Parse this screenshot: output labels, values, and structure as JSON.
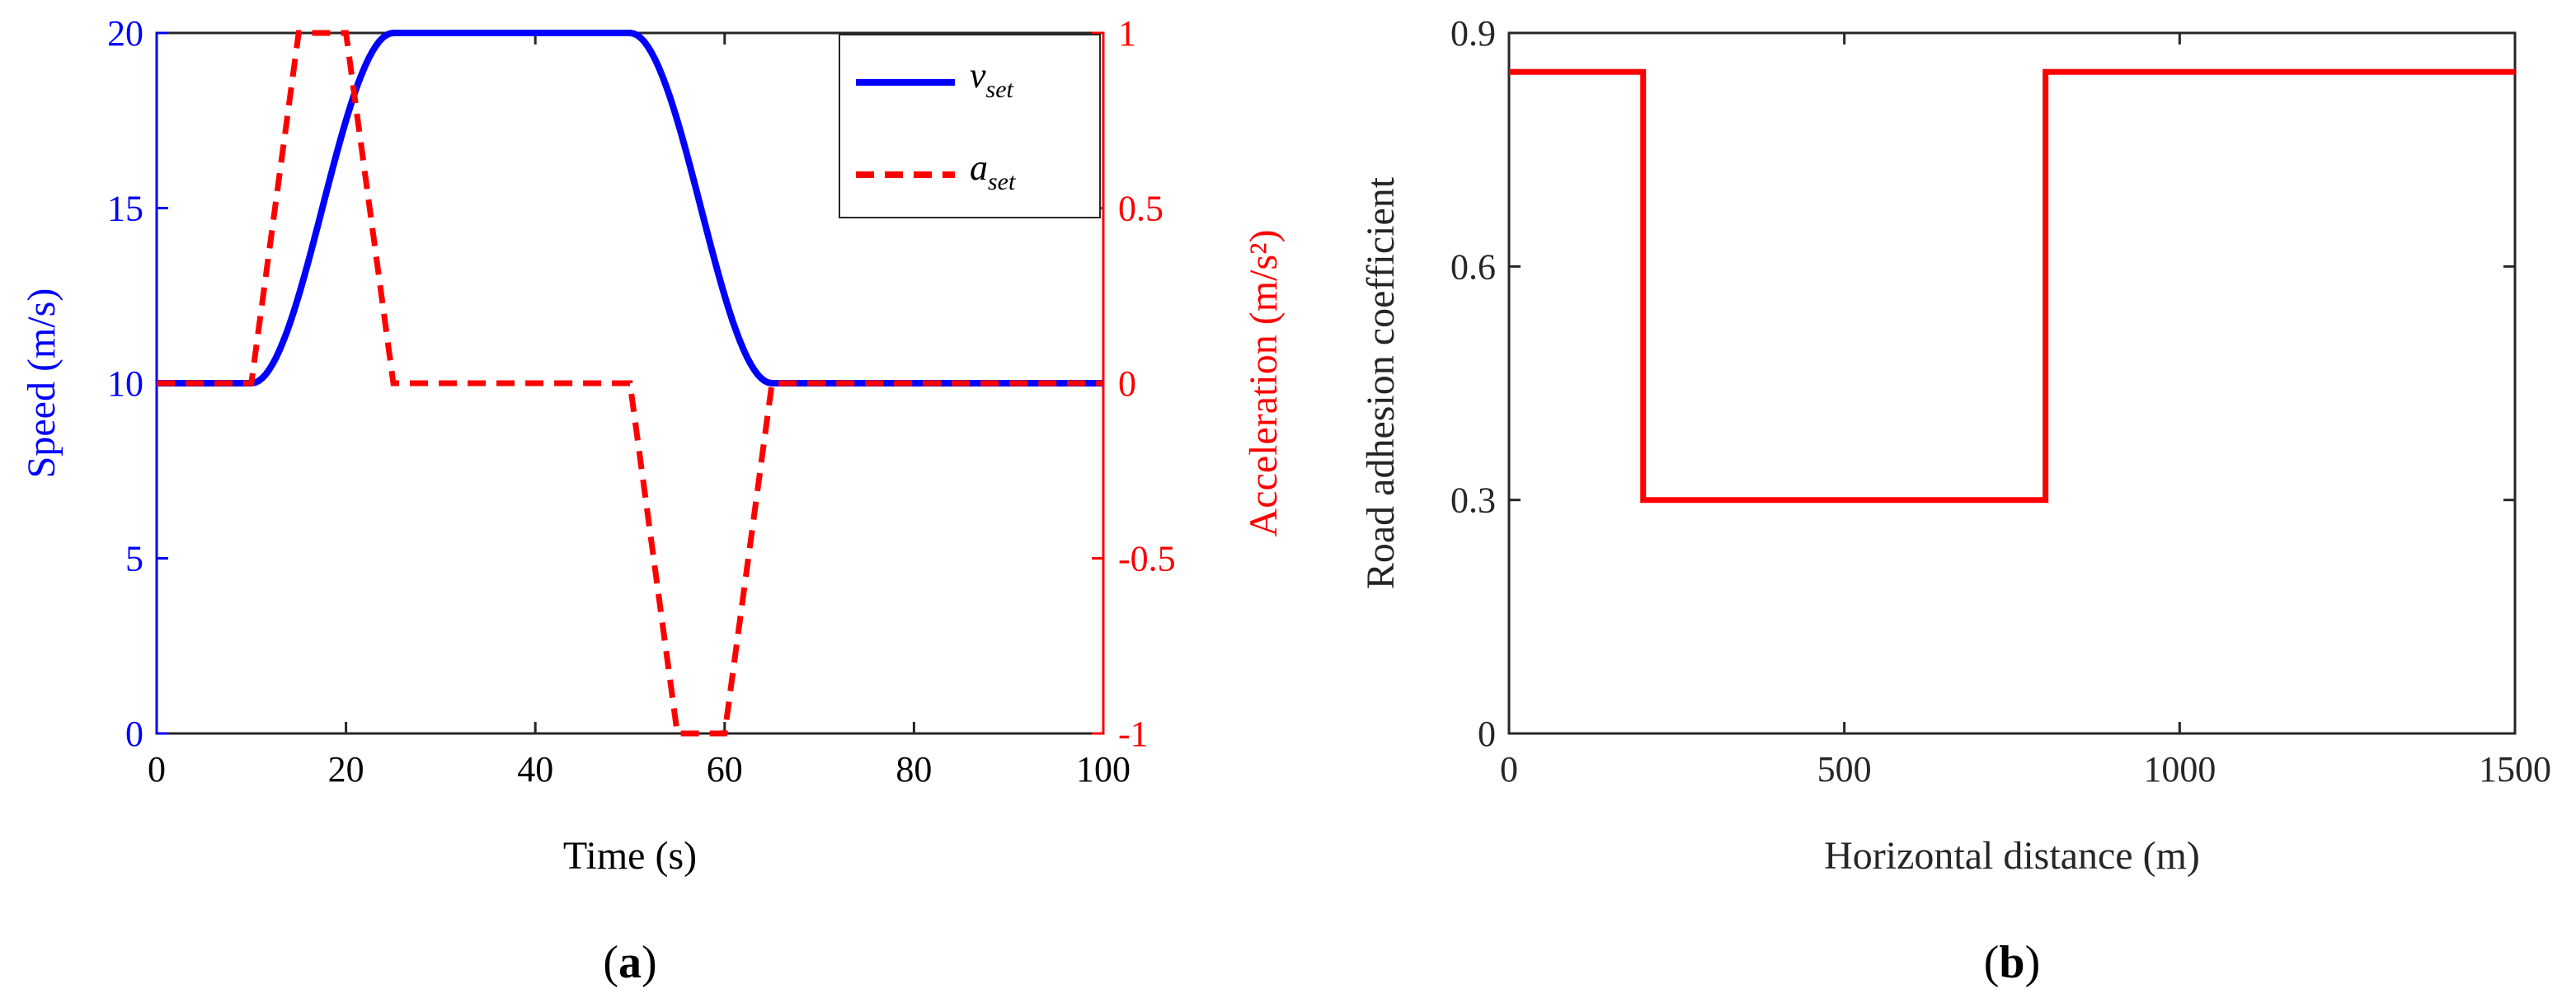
{
  "chart_data": [
    {
      "type": "line",
      "panel_label": "a",
      "xlabel": "Time (s)",
      "ylabel_left": "Speed (m/s)",
      "ylabel_right": "Acceleration (m/s²)",
      "xlim": [
        0,
        100
      ],
      "ylim_left": [
        0,
        20
      ],
      "ylim_right": [
        -1,
        1
      ],
      "xticks": [
        "0",
        "20",
        "40",
        "60",
        "80",
        "100"
      ],
      "yticks_left": [
        "0",
        "5",
        "10",
        "15",
        "20"
      ],
      "yticks_right": [
        "-1",
        "-0.5",
        "0",
        "0.5",
        "1"
      ],
      "grid": false,
      "legend_position": "top-right",
      "colors": {
        "speed": "#0000ff",
        "accel": "#ff0000"
      },
      "series": [
        {
          "name": "v_set",
          "name_main": "v",
          "name_sub": "set",
          "axis": "left",
          "style": "solid",
          "x": [
            0,
            10,
            12.5,
            15,
            17.5,
            20,
            22.5,
            25,
            50,
            52.5,
            55,
            57.5,
            60,
            62.5,
            65,
            100
          ],
          "y": [
            10,
            10,
            10.6,
            12.5,
            15,
            17.5,
            19.4,
            20,
            20,
            19.4,
            17.5,
            15,
            12.5,
            10.6,
            10,
            10
          ]
        },
        {
          "name": "a_set",
          "name_main": "a",
          "name_sub": "set",
          "axis": "right",
          "style": "dashed",
          "x": [
            0,
            10,
            15,
            20,
            25,
            50,
            55,
            60,
            65,
            100
          ],
          "y": [
            0,
            0,
            1,
            1,
            0,
            0,
            -1,
            -1,
            0,
            0
          ]
        }
      ]
    },
    {
      "type": "line",
      "panel_label": "b",
      "xlabel": "Horizontal distance (m)",
      "ylabel": "Road adhesion coefficient",
      "xlim": [
        0,
        1500
      ],
      "ylim": [
        0,
        0.9
      ],
      "xticks": [
        "0",
        "500",
        "1000",
        "1500"
      ],
      "yticks": [
        "0",
        "0.3",
        "0.6",
        "0.9"
      ],
      "grid": false,
      "colors": {
        "line": "#ff0000"
      },
      "series": [
        {
          "style": "solid",
          "x": [
            0,
            200,
            200,
            800,
            800,
            1500
          ],
          "y": [
            0.85,
            0.85,
            0.3,
            0.3,
            0.85,
            0.85
          ]
        }
      ]
    }
  ]
}
